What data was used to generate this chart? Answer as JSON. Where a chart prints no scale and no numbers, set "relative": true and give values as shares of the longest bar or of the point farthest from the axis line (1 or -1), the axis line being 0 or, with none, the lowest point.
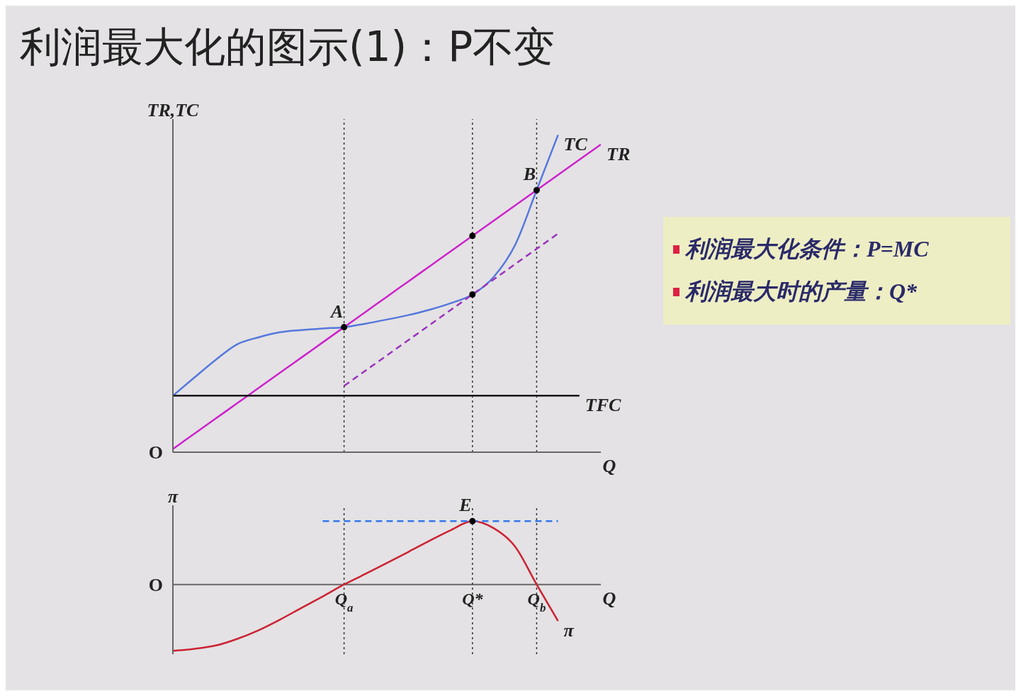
{
  "chart_data": [
    {
      "type": "line",
      "title": "利润最大化的图示(1)：P不变",
      "ylabel": "TR,TC",
      "xlabel": "Q",
      "relative": true,
      "tick_labels": false,
      "categories": [
        null,
        null,
        null,
        null,
        null,
        null,
        null,
        null,
        "Q$_{a}$",
        null,
        null,
        null,
        null,
        null,
        "Q*",
        null,
        null,
        "Q$_{b}$",
        null,
        null,
        null
      ],
      "series": [
        {
          "name": "TR",
          "color": "#cc22cc",
          "values": [
            0.01,
            0.058,
            0.106,
            0.154,
            0.202,
            0.25,
            0.298,
            0.346,
            0.394,
            0.442,
            0.49,
            0.538,
            0.586,
            0.634,
            0.682,
            0.73,
            0.778,
            0.826,
            0.874,
            0.922,
            0.97
          ]
        },
        {
          "name": "TC",
          "color": "#5577dd",
          "values": [
            0.178,
            0.235,
            0.291,
            0.34,
            0.362,
            0.378,
            0.385,
            0.39,
            0.394,
            0.405,
            0.418,
            0.432,
            0.449,
            0.47,
            0.497,
            0.553,
            0.654,
            0.826,
            1.0,
            null,
            null
          ]
        },
        {
          "name": "TFC",
          "color": "#111111",
          "values": [
            0.178,
            0.178,
            0.178,
            0.178,
            0.178,
            0.178,
            0.178,
            0.178,
            0.178,
            0.178,
            0.178,
            0.178,
            0.178,
            0.178,
            0.178,
            0.178,
            0.178,
            0.178,
            0.178,
            0.178,
            null
          ]
        },
        {
          "color": "#9933bb",
          "line_style": "dashed",
          "values": [
            null,
            null,
            null,
            null,
            null,
            null,
            null,
            null,
            0.209,
            0.257,
            0.305,
            0.353,
            0.401,
            0.449,
            0.497,
            0.545,
            0.593,
            0.641,
            0.689,
            null,
            null
          ]
        },
        {
          "type": "scatter",
          "color": "#000000",
          "values": [
            null,
            null,
            null,
            null,
            null,
            null,
            null,
            null,
            0.394,
            null,
            null,
            null,
            null,
            null,
            0.682,
            null,
            null,
            0.826,
            null,
            null,
            null
          ]
        },
        {
          "type": "scatter",
          "color": "#000000",
          "values": [
            null,
            null,
            null,
            null,
            null,
            null,
            null,
            null,
            null,
            null,
            null,
            null,
            null,
            null,
            0.497,
            null,
            null,
            null,
            null,
            null,
            null
          ]
        }
      ],
      "ref_lines": [
        {
          "axis": "x",
          "value": "Q$_{a}$",
          "color": "#333333",
          "line_style": "dotted"
        },
        {
          "axis": "x",
          "value": "Q*",
          "color": "#333333",
          "line_style": "dotted"
        },
        {
          "axis": "x",
          "value": "Q$_{b}$",
          "color": "#333333",
          "line_style": "dotted"
        }
      ],
      "annotations": [
        {
          "text": "A",
          "x": "Q$_{a}$",
          "y": 0.394
        },
        {
          "text": "B",
          "x": "Q$_{b}$",
          "y": 0.826
        },
        "O"
      ]
    },
    {
      "type": "line",
      "ylabel": "π",
      "xlabel": "Q",
      "relative": true,
      "categories": [
        null,
        null,
        null,
        null,
        null,
        null,
        null,
        null,
        "Q$_{a}$",
        null,
        null,
        null,
        null,
        null,
        "Q*",
        null,
        null,
        "Q$_{b}$",
        null,
        null,
        null
      ],
      "series": [
        {
          "name": "π",
          "color": "#cc2233",
          "values": [
            -1,
            -0.97,
            -0.92,
            -0.82,
            -0.69,
            -0.53,
            -0.354,
            -0.18,
            0,
            0.16,
            0.323,
            0.49,
            0.66,
            0.82,
            0.954,
            0.846,
            0.569,
            0,
            -0.55,
            null,
            null
          ]
        },
        {
          "color": "#3377ee",
          "line_style": "dashed",
          "values": [
            null,
            null,
            null,
            null,
            null,
            null,
            null,
            0.954,
            0.954,
            0.954,
            0.954,
            0.954,
            0.954,
            0.954,
            0.954,
            0.954,
            0.954,
            0.954,
            0.954,
            null,
            null
          ]
        },
        {
          "type": "scatter",
          "color": "#000000",
          "values": [
            null,
            null,
            null,
            null,
            null,
            null,
            null,
            null,
            null,
            null,
            null,
            null,
            null,
            null,
            0.954,
            null,
            null,
            null,
            null,
            null,
            null
          ]
        }
      ],
      "ref_lines": [
        {
          "axis": "x",
          "value": "Q$_{a}$",
          "color": "#333333",
          "line_style": "dotted"
        },
        {
          "axis": "x",
          "value": "Q*",
          "color": "#333333",
          "line_style": "dotted"
        },
        {
          "axis": "x",
          "value": "Q$_{b}$",
          "color": "#333333",
          "line_style": "dotted"
        }
      ],
      "annotations": [
        {
          "text": "E",
          "x": "Q*",
          "y": 0.954
        },
        "O"
      ]
    },
    {
      "type": "other",
      "annotations": [
        "利润最大化条件：P=MC",
        "利润最大时的产量：Q*"
      ]
    }
  ]
}
